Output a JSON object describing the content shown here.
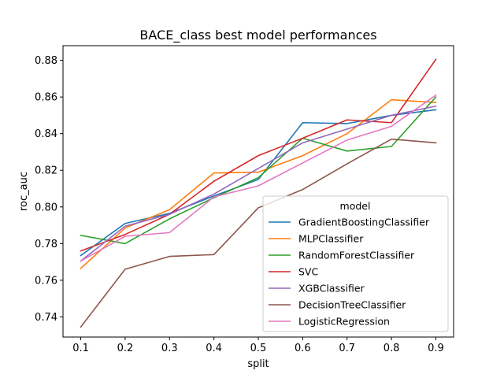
{
  "chart_data": {
    "type": "line",
    "title": "BACE_class best model performances",
    "xlabel": "split",
    "ylabel": "roc_auc",
    "x": [
      0.1,
      0.2,
      0.3,
      0.4,
      0.5,
      0.6,
      0.7,
      0.8,
      0.9
    ],
    "xlim": [
      0.06,
      0.94
    ],
    "ylim": [
      0.729,
      0.888
    ],
    "xticks": [
      "0.1",
      "0.2",
      "0.3",
      "0.4",
      "0.5",
      "0.6",
      "0.7",
      "0.8",
      "0.9"
    ],
    "yticks": [
      "0.74",
      "0.76",
      "0.78",
      "0.80",
      "0.82",
      "0.84",
      "0.86",
      "0.88"
    ],
    "ytick_values": [
      0.74,
      0.76,
      0.78,
      0.8,
      0.82,
      0.84,
      0.86,
      0.88
    ],
    "legend_title": "model",
    "legend_position": "lower-right",
    "grid": false,
    "series": [
      {
        "name": "GradientBoostingClassifier",
        "color": "#1f77b4",
        "values": [
          0.7735,
          0.791,
          0.7965,
          0.806,
          0.815,
          0.846,
          0.8455,
          0.85,
          0.853
        ]
      },
      {
        "name": "MLPClassifier",
        "color": "#ff7f0e",
        "values": [
          0.7665,
          0.7885,
          0.7985,
          0.8185,
          0.819,
          0.828,
          0.84,
          0.8585,
          0.857
        ]
      },
      {
        "name": "RandomForestClassifier",
        "color": "#2ca02c",
        "values": [
          0.7845,
          0.78,
          0.7935,
          0.805,
          0.816,
          0.8375,
          0.8305,
          0.833,
          0.86
        ]
      },
      {
        "name": "SVC",
        "color": "#d62728",
        "values": [
          0.776,
          0.785,
          0.796,
          0.814,
          0.828,
          0.8375,
          0.8475,
          0.846,
          0.8805
        ]
      },
      {
        "name": "XGBClassifier",
        "color": "#9467bd",
        "values": [
          0.7705,
          0.7895,
          0.796,
          0.807,
          0.821,
          0.835,
          0.8425,
          0.85,
          0.855
        ]
      },
      {
        "name": "DecisionTreeClassifier",
        "color": "#8c564b",
        "values": [
          0.7345,
          0.766,
          0.773,
          0.774,
          0.7995,
          0.8095,
          0.8235,
          0.837,
          0.835
        ]
      },
      {
        "name": "LogisticRegression",
        "color": "#e377c2",
        "values": [
          0.7705,
          0.784,
          0.786,
          0.8055,
          0.8115,
          0.824,
          0.8365,
          0.844,
          0.861
        ]
      }
    ]
  }
}
